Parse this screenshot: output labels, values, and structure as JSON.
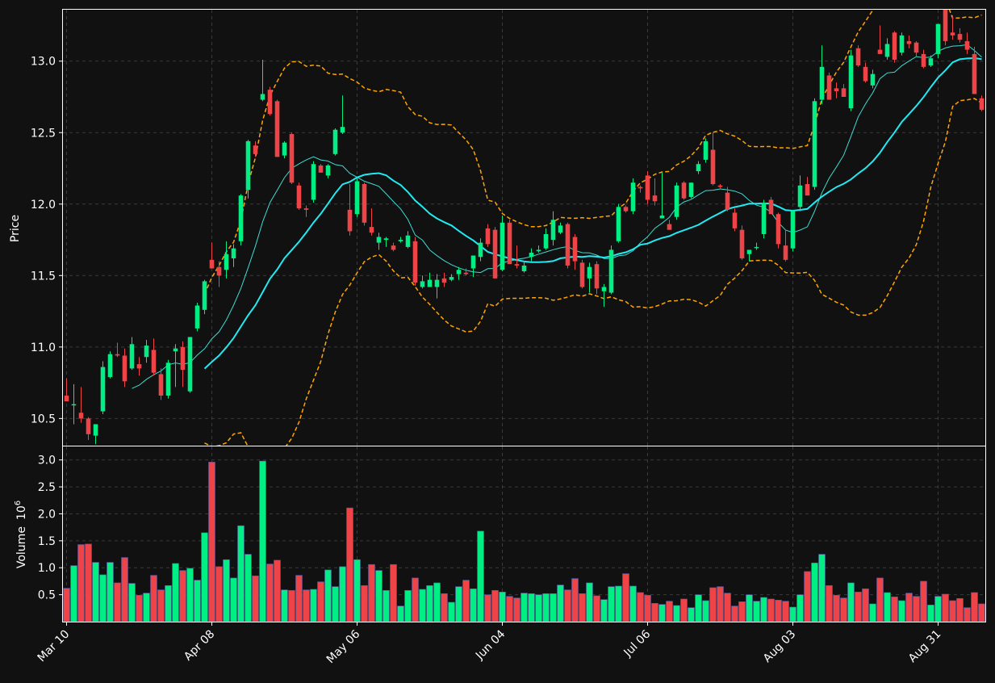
{
  "chart_data": {
    "type": "candlestick",
    "style": {
      "background": "#111111",
      "up_color": "#00ee83",
      "down_color": "#ef4447",
      "ma_fast_color": "#3ddbd1",
      "ma_slow_color": "#22e9f2",
      "band_color": "#ffa500",
      "grid_color": "#3a3a3a",
      "text_color": "#ffffff"
    },
    "price_panel": {
      "ylabel": "Price",
      "ylim": [
        10.31,
        13.36
      ],
      "yticks": [
        "10.5",
        "11.0",
        "11.5",
        "12.0",
        "12.5",
        "13.0"
      ],
      "grid": true
    },
    "volume_panel": {
      "ylabel": "Volume",
      "yunit": "10",
      "yunit_exp": "6",
      "ylim": [
        0,
        3.25
      ],
      "yticks": [
        "0.5",
        "1.0",
        "1.5",
        "2.0",
        "2.5",
        "3.0"
      ],
      "grid": true
    },
    "x_tick_labels": [
      {
        "i": 0,
        "label": "Mar 10"
      },
      {
        "i": 20,
        "label": "Apr 08"
      },
      {
        "i": 40,
        "label": "May 06"
      },
      {
        "i": 60,
        "label": "Jun 04"
      },
      {
        "i": 80,
        "label": "Jul 06"
      },
      {
        "i": 100,
        "label": "Aug 03"
      },
      {
        "i": 120,
        "label": "Aug 31"
      }
    ],
    "candles": [
      [
        10.66,
        10.78,
        10.62,
        10.62,
        0.62
      ],
      [
        10.6,
        10.74,
        10.46,
        10.6,
        1.04
      ],
      [
        10.54,
        10.72,
        10.47,
        10.5,
        1.43
      ],
      [
        10.5,
        10.51,
        10.35,
        10.39,
        1.44
      ],
      [
        10.38,
        10.45,
        10.32,
        10.46,
        1.1
      ],
      [
        10.55,
        10.9,
        10.53,
        10.86,
        0.87
      ],
      [
        10.79,
        10.97,
        10.78,
        10.95,
        1.1
      ],
      [
        10.95,
        11.03,
        10.93,
        10.94,
        0.72
      ],
      [
        10.94,
        10.99,
        10.72,
        10.76,
        1.19
      ],
      [
        10.85,
        11.07,
        10.84,
        11.02,
        0.71
      ],
      [
        10.88,
        10.93,
        10.8,
        10.85,
        0.49
      ],
      [
        10.93,
        11.05,
        10.89,
        11.01,
        0.53
      ],
      [
        10.98,
        11.06,
        10.8,
        10.82,
        0.86
      ],
      [
        10.81,
        10.85,
        10.63,
        10.66,
        0.59
      ],
      [
        10.66,
        10.91,
        10.64,
        10.89,
        0.67
      ],
      [
        10.97,
        11.02,
        10.72,
        10.99,
        1.08
      ],
      [
        11.0,
        11.04,
        10.72,
        10.84,
        0.95
      ],
      [
        10.69,
        11.07,
        10.68,
        11.07,
        0.99
      ],
      [
        11.13,
        11.31,
        11.11,
        11.29,
        0.77
      ],
      [
        11.26,
        11.47,
        11.23,
        11.46,
        1.65
      ],
      [
        11.61,
        11.73,
        11.55,
        11.55,
        2.96
      ],
      [
        11.56,
        11.6,
        11.42,
        11.5,
        1.02
      ],
      [
        11.54,
        11.74,
        11.48,
        11.65,
        1.15
      ],
      [
        11.62,
        11.72,
        11.56,
        11.69,
        0.81
      ],
      [
        11.74,
        12.07,
        11.71,
        12.06,
        1.78
      ],
      [
        12.1,
        12.45,
        12.04,
        12.44,
        1.25
      ],
      [
        12.41,
        12.44,
        12.33,
        12.35,
        0.85
      ],
      [
        12.73,
        13.01,
        12.72,
        12.77,
        2.98
      ],
      [
        12.8,
        12.82,
        12.62,
        12.63,
        1.07
      ],
      [
        12.72,
        12.73,
        12.33,
        12.33,
        1.14
      ],
      [
        12.34,
        12.44,
        12.32,
        12.43,
        0.59
      ],
      [
        12.49,
        12.5,
        12.14,
        12.15,
        0.58
      ],
      [
        12.13,
        12.15,
        11.96,
        11.97,
        0.86
      ],
      [
        11.97,
        11.99,
        11.91,
        11.96,
        0.59
      ],
      [
        12.03,
        12.3,
        12.01,
        12.28,
        0.6
      ],
      [
        12.27,
        12.28,
        12.22,
        12.22,
        0.74
      ],
      [
        12.2,
        12.28,
        12.18,
        12.27,
        0.96
      ],
      [
        12.35,
        12.53,
        12.34,
        12.52,
        0.65
      ],
      [
        12.5,
        12.76,
        12.49,
        12.54,
        1.02
      ],
      [
        11.96,
        12.14,
        11.78,
        11.81,
        2.11
      ],
      [
        11.93,
        12.18,
        11.91,
        12.16,
        1.15
      ],
      [
        12.14,
        12.15,
        11.85,
        11.87,
        0.67
      ],
      [
        11.84,
        11.97,
        11.78,
        11.8,
        1.06
      ],
      [
        11.73,
        11.8,
        11.68,
        11.77,
        0.95
      ],
      [
        11.75,
        11.77,
        11.7,
        11.76,
        0.58
      ],
      [
        11.71,
        11.73,
        11.67,
        11.68,
        1.06
      ],
      [
        11.74,
        11.77,
        11.73,
        11.75,
        0.29
      ],
      [
        11.7,
        11.81,
        11.69,
        11.78,
        0.58
      ],
      [
        11.74,
        11.77,
        11.43,
        11.45,
        0.81
      ],
      [
        11.42,
        11.5,
        11.41,
        11.46,
        0.6
      ],
      [
        11.42,
        11.52,
        11.42,
        11.47,
        0.67
      ],
      [
        11.42,
        11.51,
        11.34,
        11.47,
        0.72
      ],
      [
        11.48,
        11.52,
        11.42,
        11.45,
        0.52
      ],
      [
        11.47,
        11.51,
        11.46,
        11.49,
        0.36
      ],
      [
        11.51,
        11.56,
        11.47,
        11.54,
        0.65
      ],
      [
        11.52,
        11.55,
        11.5,
        11.51,
        0.77
      ],
      [
        11.55,
        11.64,
        11.49,
        11.64,
        0.61
      ],
      [
        11.63,
        11.76,
        11.6,
        11.73,
        1.68
      ],
      [
        11.83,
        11.86,
        11.7,
        11.72,
        0.5
      ],
      [
        11.82,
        11.84,
        11.48,
        11.48,
        0.58
      ],
      [
        11.54,
        11.92,
        11.53,
        11.87,
        0.55
      ],
      [
        11.87,
        11.89,
        11.58,
        11.58,
        0.47
      ],
      [
        11.58,
        11.71,
        11.55,
        11.57,
        0.44
      ],
      [
        11.53,
        11.6,
        11.52,
        11.57,
        0.53
      ],
      [
        11.63,
        11.69,
        11.6,
        11.66,
        0.52
      ],
      [
        11.67,
        11.71,
        11.66,
        11.68,
        0.5
      ],
      [
        11.69,
        11.83,
        11.68,
        11.79,
        0.52
      ],
      [
        11.75,
        11.95,
        11.71,
        11.89,
        0.52
      ],
      [
        11.8,
        11.87,
        11.79,
        11.85,
        0.68
      ],
      [
        11.86,
        11.87,
        11.55,
        11.57,
        0.59
      ],
      [
        11.77,
        11.79,
        11.54,
        11.6,
        0.8
      ],
      [
        11.59,
        11.61,
        11.41,
        11.42,
        0.52
      ],
      [
        11.48,
        11.59,
        11.38,
        11.56,
        0.72
      ],
      [
        11.58,
        11.6,
        11.37,
        11.41,
        0.48
      ],
      [
        11.39,
        11.44,
        11.28,
        11.42,
        0.41
      ],
      [
        11.38,
        11.71,
        11.37,
        11.68,
        0.65
      ],
      [
        11.74,
        12.0,
        11.73,
        11.98,
        0.66
      ],
      [
        11.98,
        11.99,
        11.94,
        11.95,
        0.89
      ],
      [
        11.95,
        12.18,
        11.93,
        12.15,
        0.66
      ],
      [
        12.12,
        12.13,
        12.08,
        12.11,
        0.54
      ],
      [
        12.2,
        12.23,
        12.0,
        12.03,
        0.49
      ],
      [
        12.06,
        12.18,
        11.99,
        12.02,
        0.34
      ],
      [
        11.9,
        12.22,
        11.9,
        11.92,
        0.32
      ],
      [
        11.86,
        11.89,
        11.82,
        11.82,
        0.38
      ],
      [
        11.91,
        12.15,
        11.89,
        12.13,
        0.3
      ],
      [
        12.15,
        12.16,
        12.03,
        12.04,
        0.42
      ],
      [
        12.05,
        12.15,
        12.04,
        12.15,
        0.26
      ],
      [
        12.23,
        12.3,
        12.21,
        12.28,
        0.5
      ],
      [
        12.31,
        12.46,
        12.29,
        12.44,
        0.39
      ],
      [
        12.38,
        12.5,
        12.13,
        12.14,
        0.63
      ],
      [
        12.13,
        12.14,
        12.11,
        12.12,
        0.65
      ],
      [
        12.08,
        12.12,
        11.95,
        11.96,
        0.53
      ],
      [
        11.94,
        11.97,
        11.81,
        11.83,
        0.29
      ],
      [
        11.82,
        11.85,
        11.61,
        11.62,
        0.37
      ],
      [
        11.65,
        11.67,
        11.6,
        11.68,
        0.5
      ],
      [
        11.7,
        11.73,
        11.68,
        11.7,
        0.38
      ],
      [
        11.79,
        12.03,
        11.76,
        12.01,
        0.45
      ],
      [
        12.03,
        12.05,
        11.93,
        11.93,
        0.42
      ],
      [
        11.93,
        11.94,
        11.69,
        11.72,
        0.4
      ],
      [
        11.71,
        11.82,
        11.6,
        11.61,
        0.38
      ],
      [
        11.69,
        11.96,
        11.67,
        11.95,
        0.27
      ],
      [
        11.98,
        12.2,
        11.95,
        12.13,
        0.5
      ],
      [
        12.14,
        12.19,
        12.06,
        12.06,
        0.93
      ],
      [
        12.12,
        12.74,
        12.1,
        12.72,
        1.09
      ],
      [
        12.73,
        13.11,
        12.7,
        12.96,
        1.25
      ],
      [
        12.9,
        12.92,
        12.73,
        12.73,
        0.67
      ],
      [
        12.81,
        12.85,
        12.74,
        12.79,
        0.49
      ],
      [
        12.81,
        12.84,
        12.76,
        12.75,
        0.44
      ],
      [
        12.67,
        13.08,
        12.65,
        13.04,
        0.72
      ],
      [
        13.09,
        13.11,
        12.96,
        12.97,
        0.55
      ],
      [
        12.96,
        12.99,
        12.85,
        12.86,
        0.61
      ],
      [
        12.83,
        12.94,
        12.81,
        12.91,
        0.33
      ],
      [
        13.08,
        13.25,
        13.06,
        13.05,
        0.81
      ],
      [
        13.03,
        13.16,
        13.01,
        13.12,
        0.54
      ],
      [
        13.2,
        13.21,
        12.99,
        13.01,
        0.46
      ],
      [
        13.06,
        13.2,
        13.04,
        13.18,
        0.39
      ],
      [
        13.14,
        13.18,
        13.09,
        13.12,
        0.53
      ],
      [
        13.13,
        13.14,
        13.03,
        13.06,
        0.47
      ],
      [
        13.05,
        13.08,
        12.95,
        12.96,
        0.75
      ],
      [
        12.97,
        13.04,
        12.96,
        13.02,
        0.31
      ],
      [
        13.05,
        13.26,
        13.02,
        13.26,
        0.47
      ],
      [
        13.37,
        13.48,
        13.11,
        13.14,
        0.51
      ],
      [
        13.2,
        13.32,
        13.15,
        13.18,
        0.39
      ],
      [
        13.19,
        13.23,
        13.13,
        13.15,
        0.43
      ],
      [
        13.14,
        13.2,
        13.05,
        13.08,
        0.26
      ],
      [
        13.05,
        13.1,
        12.77,
        12.77,
        0.54
      ],
      [
        12.74,
        12.76,
        12.65,
        12.66,
        0.33
      ]
    ]
  }
}
